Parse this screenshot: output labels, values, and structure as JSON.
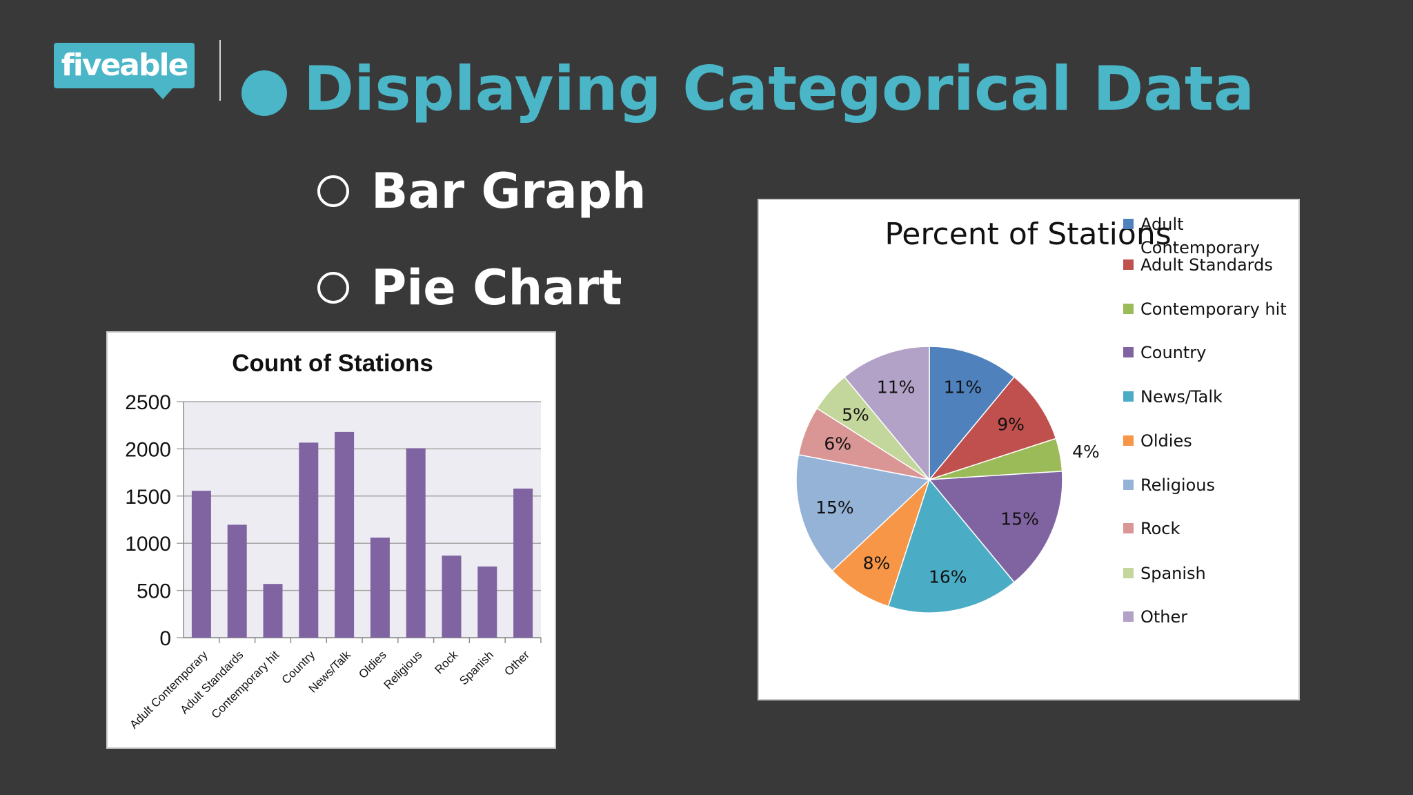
{
  "logo": {
    "text": "fiveable"
  },
  "heading": {
    "title": "Displaying Categorical Data"
  },
  "bullets": [
    {
      "label": "Bar Graph"
    },
    {
      "label": "Pie Chart"
    }
  ],
  "colors": {
    "accent": "#4ab6c7",
    "background": "#393939",
    "bar": "#8064a2"
  },
  "chart_data": [
    {
      "type": "bar",
      "title": "Count of Stations",
      "categories": [
        "Adult Contemporary",
        "Adult Standards",
        "Contemporary hit",
        "Country",
        "News/Talk",
        "Oldies",
        "Religious",
        "Rock",
        "Spanish",
        "Other"
      ],
      "values": [
        1556,
        1196,
        569,
        2066,
        2179,
        1060,
        2007,
        869,
        754,
        1579
      ],
      "ylim": [
        0,
        2500
      ],
      "yticks": [
        "0",
        "500",
        "1000",
        "1500",
        "2000",
        "2500"
      ],
      "grid": true,
      "legend": "none"
    },
    {
      "type": "pie",
      "title": "Percent of Stations",
      "legend_position": "right",
      "slices": [
        {
          "name": "Adult Contemporary",
          "value": 11,
          "label": "11%",
          "color": "#4f81bd"
        },
        {
          "name": "Adult Standards",
          "value": 9,
          "label": "9%",
          "color": "#c0504d"
        },
        {
          "name": "Contemporary hit",
          "value": 4,
          "label": "4%",
          "color": "#9bbb59"
        },
        {
          "name": "Country",
          "value": 15,
          "label": "15%",
          "color": "#8064a2"
        },
        {
          "name": "News/Talk",
          "value": 16,
          "label": "16%",
          "color": "#4bacc6"
        },
        {
          "name": "Oldies",
          "value": 8,
          "label": "8%",
          "color": "#f79646"
        },
        {
          "name": "Religious",
          "value": 15,
          "label": "15%",
          "color": "#95b3d7"
        },
        {
          "name": "Rock",
          "value": 6,
          "label": "6%",
          "color": "#d99694"
        },
        {
          "name": "Spanish",
          "value": 5,
          "label": "5%",
          "color": "#c3d69b"
        },
        {
          "name": "Other",
          "value": 11,
          "label": "11%",
          "color": "#b2a2c7"
        }
      ],
      "legend": [
        {
          "lines": [
            "Adult",
            "Contemporary"
          ]
        },
        {
          "lines": [
            "Adult Standards"
          ]
        },
        {
          "lines": [
            "Contemporary hit"
          ]
        },
        {
          "lines": [
            "Country"
          ]
        },
        {
          "lines": [
            "News/Talk"
          ]
        },
        {
          "lines": [
            "Oldies"
          ]
        },
        {
          "lines": [
            "Religious"
          ]
        },
        {
          "lines": [
            "Rock"
          ]
        },
        {
          "lines": [
            "Spanish"
          ]
        },
        {
          "lines": [
            "Other"
          ]
        }
      ]
    }
  ]
}
